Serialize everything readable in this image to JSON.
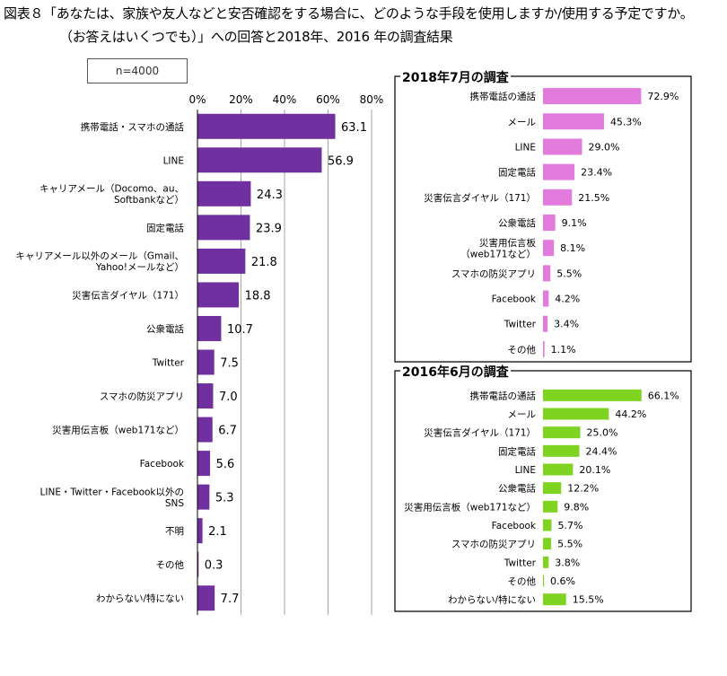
{
  "title": {
    "line1": "図表８「あなたは、家族や友人などと安否確認をする場合に、どのような手段を使用しますか/使用する予定ですか。",
    "line2": "（お答えはいくつでも）」への回答と2018年、2016 年の調査結果"
  },
  "sample_label": "n=4000",
  "colors": {
    "main": "#7030a0",
    "y2018": "#e37bdd",
    "y2016": "#7fd321"
  },
  "chart_data": [
    {
      "type": "bar",
      "orientation": "horizontal",
      "title": "",
      "xlim": [
        0,
        80
      ],
      "ticks": [
        "0%",
        "20%",
        "40%",
        "60%",
        "80%"
      ],
      "tick_values": [
        0,
        20,
        40,
        60,
        80
      ],
      "categories": [
        "携帯電話・スマホの通話",
        "LINE",
        "キャリアメール（Docomo、au、\nSoftbankなど）",
        "固定電話",
        "キャリアメール以外のメール（Gmail、\nYahoo!メールなど）",
        "災害伝言ダイヤル（171）",
        "公衆電話",
        "Twitter",
        "スマホの防災アプリ",
        "災害用伝言板（web171など）",
        "Facebook",
        "LINE・Twitter・Facebook以外の\nSNS",
        "不明",
        "その他",
        "わからない/特にない"
      ],
      "values": [
        63.1,
        56.9,
        24.3,
        23.9,
        21.8,
        18.8,
        10.7,
        7.5,
        7.0,
        6.7,
        5.6,
        5.3,
        2.1,
        0.3,
        7.7
      ],
      "value_labels": [
        "63.1",
        "56.9",
        "24.3",
        "23.9",
        "21.8",
        "18.8",
        "10.7",
        "7.5",
        "7.0",
        "6.7",
        "5.6",
        "5.3",
        "2.1",
        "0.3",
        "7.7"
      ]
    },
    {
      "type": "bar",
      "orientation": "horizontal",
      "title": "2018年7月の調査",
      "xlim": [
        0,
        100
      ],
      "categories": [
        "携帯電話の通話",
        "メール",
        "LINE",
        "固定電話",
        "災害伝言ダイヤル（171）",
        "公衆電話",
        "災害用伝言板\n（web171など）",
        "スマホの防災アプリ",
        "Facebook",
        "Twitter",
        "その他"
      ],
      "values": [
        72.9,
        45.3,
        29.0,
        23.4,
        21.5,
        9.1,
        8.1,
        5.5,
        4.2,
        3.4,
        1.1
      ],
      "value_labels": [
        "72.9%",
        "45.3%",
        "29.0%",
        "23.4%",
        "21.5%",
        "9.1%",
        "8.1%",
        "5.5%",
        "4.2%",
        "3.4%",
        "1.1%"
      ]
    },
    {
      "type": "bar",
      "orientation": "horizontal",
      "title": "2016年6月の調査",
      "xlim": [
        0,
        100
      ],
      "categories": [
        "携帯電話の通話",
        "メール",
        "災害伝言ダイヤル（171）",
        "固定電話",
        "LINE",
        "公衆電話",
        "災害用伝言板（web171など）",
        "Facebook",
        "スマホの防災アプリ",
        "Twitter",
        "その他",
        "わからない/特にない"
      ],
      "values": [
        66.1,
        44.2,
        25.0,
        24.4,
        20.1,
        12.2,
        9.8,
        5.7,
        5.5,
        3.8,
        0.6,
        15.5
      ],
      "value_labels": [
        "66.1%",
        "44.2%",
        "25.0%",
        "24.4%",
        "20.1%",
        "12.2%",
        "9.8%",
        "5.7%",
        "5.5%",
        "3.8%",
        "0.6%",
        "15.5%"
      ]
    }
  ]
}
